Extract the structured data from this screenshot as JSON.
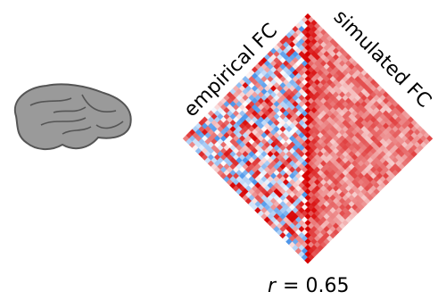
{
  "labels": {
    "left": "empirical FC",
    "right": "simulated FC"
  },
  "statistic": {
    "symbol": "r",
    "text": "= 0.65"
  }
}
